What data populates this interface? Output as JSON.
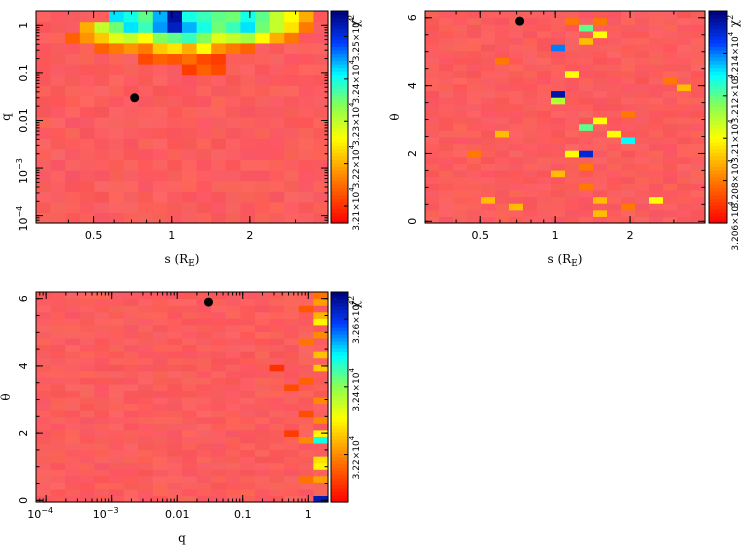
{
  "chart_data": [
    {
      "type": "heatmap",
      "xlabel": "s (R",
      "xlabel_sub": "E",
      "xlabel_end": ")",
      "ylabel": "q",
      "x_scale": "log",
      "y_scale": "log",
      "xlim": [
        0.3,
        4.0
      ],
      "ylim": [
        7e-05,
        2.0
      ],
      "x_ticks": [
        {
          "v": 0.5,
          "t": "0.5"
        },
        {
          "v": 1,
          "t": "1"
        },
        {
          "v": 2,
          "t": "2"
        }
      ],
      "y_ticks": [
        {
          "v": 0.0001,
          "t": "10",
          "sup": "−4"
        },
        {
          "v": 0.001,
          "t": "10",
          "sup": "−3"
        },
        {
          "v": 0.01,
          "t": "0.01"
        },
        {
          "v": 0.1,
          "t": "0.1"
        },
        {
          "v": 1,
          "t": "1"
        }
      ],
      "colorbar": {
        "label": "χ",
        "label_sup": "2",
        "range": [
          32060,
          32560
        ],
        "ticks": [
          {
            "v": 32100,
            "t": "3.21×10",
            "sup": "4"
          },
          {
            "v": 32200,
            "t": "3.22×10",
            "sup": "4"
          },
          {
            "v": 32300,
            "t": "3.23×10",
            "sup": "4"
          },
          {
            "v": 32400,
            "t": "3.24×10",
            "sup": "4"
          },
          {
            "v": 32500,
            "t": "3.25×10",
            "sup": "4"
          }
        ]
      },
      "marker": {
        "x": 0.72,
        "y": 0.03
      },
      "grid": {
        "nx": 20,
        "ny": 20
      },
      "hot_cells": [
        {
          "i": 5,
          "j": 19,
          "v": 32420
        },
        {
          "i": 6,
          "j": 19,
          "v": 32400
        },
        {
          "i": 7,
          "j": 19,
          "v": 32360
        },
        {
          "i": 8,
          "j": 19,
          "v": 32440
        },
        {
          "i": 9,
          "j": 19,
          "v": 32540
        },
        {
          "i": 10,
          "j": 19,
          "v": 32400
        },
        {
          "i": 11,
          "j": 19,
          "v": 32380
        },
        {
          "i": 12,
          "j": 19,
          "v": 32360
        },
        {
          "i": 13,
          "j": 19,
          "v": 32350
        },
        {
          "i": 14,
          "j": 19,
          "v": 32400
        },
        {
          "i": 15,
          "j": 19,
          "v": 32360
        },
        {
          "i": 16,
          "j": 19,
          "v": 32300
        },
        {
          "i": 17,
          "j": 19,
          "v": 32260
        },
        {
          "i": 18,
          "j": 19,
          "v": 32200
        },
        {
          "i": 3,
          "j": 18,
          "v": 32200
        },
        {
          "i": 4,
          "j": 18,
          "v": 32300
        },
        {
          "i": 5,
          "j": 18,
          "v": 32350
        },
        {
          "i": 6,
          "j": 18,
          "v": 32420
        },
        {
          "i": 7,
          "j": 18,
          "v": 32380
        },
        {
          "i": 8,
          "j": 18,
          "v": 32450
        },
        {
          "i": 9,
          "j": 18,
          "v": 32520
        },
        {
          "i": 10,
          "j": 18,
          "v": 32440
        },
        {
          "i": 11,
          "j": 18,
          "v": 32400
        },
        {
          "i": 12,
          "j": 18,
          "v": 32350
        },
        {
          "i": 13,
          "j": 18,
          "v": 32380
        },
        {
          "i": 14,
          "j": 18,
          "v": 32420
        },
        {
          "i": 15,
          "j": 18,
          "v": 32350
        },
        {
          "i": 16,
          "j": 18,
          "v": 32300
        },
        {
          "i": 17,
          "j": 18,
          "v": 32240
        },
        {
          "i": 18,
          "j": 18,
          "v": 32160
        },
        {
          "i": 2,
          "j": 17,
          "v": 32140
        },
        {
          "i": 3,
          "j": 17,
          "v": 32180
        },
        {
          "i": 4,
          "j": 17,
          "v": 32220
        },
        {
          "i": 5,
          "j": 17,
          "v": 32280
        },
        {
          "i": 6,
          "j": 17,
          "v": 32300
        },
        {
          "i": 7,
          "j": 17,
          "v": 32260
        },
        {
          "i": 8,
          "j": 17,
          "v": 32340
        },
        {
          "i": 9,
          "j": 17,
          "v": 32360
        },
        {
          "i": 10,
          "j": 17,
          "v": 32380
        },
        {
          "i": 11,
          "j": 17,
          "v": 32340
        },
        {
          "i": 12,
          "j": 17,
          "v": 32280
        },
        {
          "i": 13,
          "j": 17,
          "v": 32300
        },
        {
          "i": 14,
          "j": 17,
          "v": 32320
        },
        {
          "i": 15,
          "j": 17,
          "v": 32260
        },
        {
          "i": 16,
          "j": 17,
          "v": 32200
        },
        {
          "i": 17,
          "j": 17,
          "v": 32160
        },
        {
          "i": 4,
          "j": 16,
          "v": 32140
        },
        {
          "i": 5,
          "j": 16,
          "v": 32160
        },
        {
          "i": 6,
          "j": 16,
          "v": 32180
        },
        {
          "i": 7,
          "j": 16,
          "v": 32160
        },
        {
          "i": 8,
          "j": 16,
          "v": 32220
        },
        {
          "i": 9,
          "j": 16,
          "v": 32240
        },
        {
          "i": 10,
          "j": 16,
          "v": 32200
        },
        {
          "i": 11,
          "j": 16,
          "v": 32260
        },
        {
          "i": 12,
          "j": 16,
          "v": 32180
        },
        {
          "i": 13,
          "j": 16,
          "v": 32160
        },
        {
          "i": 14,
          "j": 16,
          "v": 32140
        },
        {
          "i": 7,
          "j": 15,
          "v": 32120
        },
        {
          "i": 8,
          "j": 15,
          "v": 32140
        },
        {
          "i": 9,
          "j": 15,
          "v": 32130
        },
        {
          "i": 10,
          "j": 15,
          "v": 32150
        },
        {
          "i": 11,
          "j": 15,
          "v": 32120
        },
        {
          "i": 12,
          "j": 15,
          "v": 32110
        },
        {
          "i": 10,
          "j": 14,
          "v": 32110
        },
        {
          "i": 11,
          "j": 14,
          "v": 32140
        },
        {
          "i": 12,
          "j": 14,
          "v": 32120
        }
      ]
    },
    {
      "type": "heatmap",
      "xlabel": "s (R",
      "xlabel_sub": "E",
      "xlabel_end": ")",
      "ylabel": "θ",
      "x_scale": "log",
      "y_scale": "linear",
      "xlim": [
        0.3,
        4.0
      ],
      "ylim": [
        -0.05,
        6.2
      ],
      "x_ticks": [
        {
          "v": 0.5,
          "t": "0.5"
        },
        {
          "v": 1,
          "t": "1"
        },
        {
          "v": 2,
          "t": "2"
        }
      ],
      "y_ticks": [
        {
          "v": 0,
          "t": "0"
        },
        {
          "v": 2,
          "t": "2"
        },
        {
          "v": 4,
          "t": "4"
        },
        {
          "v": 6,
          "t": "6"
        }
      ],
      "colorbar": {
        "label": "χ",
        "label_sup": "2",
        "range": [
          32060,
          32160
        ],
        "ticks": [
          {
            "v": 32060,
            "t": "3.206×10",
            "sup": "4"
          },
          {
            "v": 32080,
            "t": "3.208×10",
            "sup": "4"
          },
          {
            "v": 32100,
            "t": "3.21×10",
            "sup": "4"
          },
          {
            "v": 32120,
            "t": "3.212×10",
            "sup": "4"
          },
          {
            "v": 32140,
            "t": "3.214×10",
            "sup": "4"
          }
        ]
      },
      "marker": {
        "x": 0.72,
        "y": 5.9
      },
      "grid": {
        "nx": 20,
        "ny": 32
      },
      "hot_cells": [
        {
          "i": 9,
          "j": 26,
          "v": 32140
        },
        {
          "i": 9,
          "j": 19,
          "v": 32155
        },
        {
          "i": 9,
          "j": 18,
          "v": 32110
        },
        {
          "i": 11,
          "j": 29,
          "v": 32120
        },
        {
          "i": 11,
          "j": 27,
          "v": 32090
        },
        {
          "i": 12,
          "j": 28,
          "v": 32100
        },
        {
          "i": 11,
          "j": 14,
          "v": 32120
        },
        {
          "i": 11,
          "j": 10,
          "v": 32150
        },
        {
          "i": 10,
          "j": 10,
          "v": 32100
        },
        {
          "i": 9,
          "j": 7,
          "v": 32090
        },
        {
          "i": 14,
          "j": 12,
          "v": 32130
        },
        {
          "i": 13,
          "j": 13,
          "v": 32100
        },
        {
          "i": 12,
          "j": 15,
          "v": 32100
        },
        {
          "i": 10,
          "j": 22,
          "v": 32100
        },
        {
          "i": 5,
          "j": 13,
          "v": 32090
        },
        {
          "i": 18,
          "j": 20,
          "v": 32090
        },
        {
          "i": 4,
          "j": 3,
          "v": 32090
        },
        {
          "i": 6,
          "j": 2,
          "v": 32090
        },
        {
          "i": 12,
          "j": 3,
          "v": 32090
        },
        {
          "i": 12,
          "j": 1,
          "v": 32090
        },
        {
          "i": 16,
          "j": 3,
          "v": 32100
        },
        {
          "i": 14,
          "j": 2,
          "v": 32080
        },
        {
          "i": 11,
          "j": 8,
          "v": 32080
        },
        {
          "i": 11,
          "j": 5,
          "v": 32080
        },
        {
          "i": 10,
          "j": 30,
          "v": 32080
        },
        {
          "i": 12,
          "j": 30,
          "v": 32080
        },
        {
          "i": 14,
          "j": 16,
          "v": 32080
        },
        {
          "i": 5,
          "j": 24,
          "v": 32080
        },
        {
          "i": 17,
          "j": 21,
          "v": 32080
        },
        {
          "i": 3,
          "j": 10,
          "v": 32080
        }
      ]
    },
    {
      "type": "heatmap",
      "xlabel": "q",
      "ylabel": "θ",
      "x_scale": "log",
      "y_scale": "linear",
      "xlim": [
        7e-05,
        2.0
      ],
      "ylim": [
        -0.05,
        6.2
      ],
      "x_ticks": [
        {
          "v": 0.0001,
          "t": "10",
          "sup": "−4"
        },
        {
          "v": 0.001,
          "t": "10",
          "sup": "−3"
        },
        {
          "v": 0.01,
          "t": "0.01"
        },
        {
          "v": 0.1,
          "t": "0.1"
        },
        {
          "v": 1,
          "t": "1"
        }
      ],
      "y_ticks": [
        {
          "v": 0,
          "t": "0"
        },
        {
          "v": 2,
          "t": "2"
        },
        {
          "v": 4,
          "t": "4"
        },
        {
          "v": 6,
          "t": "6"
        }
      ],
      "colorbar": {
        "label": "χ",
        "label_sup": "2",
        "range": [
          32060,
          32680
        ],
        "ticks": [
          {
            "v": 32200,
            "t": "3.22×10",
            "sup": "4"
          },
          {
            "v": 32400,
            "t": "3.24×10",
            "sup": "4"
          },
          {
            "v": 32600,
            "t": "3.26×10",
            "sup": "4"
          }
        ]
      },
      "marker": {
        "x": 0.03,
        "y": 5.9
      },
      "grid": {
        "nx": 20,
        "ny": 32
      },
      "hot_cells": [
        {
          "i": 19,
          "j": 0,
          "v": 32640
        },
        {
          "i": 19,
          "j": 9,
          "v": 32480
        },
        {
          "i": 19,
          "j": 10,
          "v": 32300
        },
        {
          "i": 19,
          "j": 5,
          "v": 32300
        },
        {
          "i": 19,
          "j": 27,
          "v": 32300
        },
        {
          "i": 19,
          "j": 28,
          "v": 32240
        },
        {
          "i": 19,
          "j": 30,
          "v": 32220
        },
        {
          "i": 19,
          "j": 31,
          "v": 32180
        },
        {
          "i": 19,
          "j": 20,
          "v": 32260
        },
        {
          "i": 19,
          "j": 15,
          "v": 32200
        },
        {
          "i": 19,
          "j": 22,
          "v": 32250
        },
        {
          "i": 19,
          "j": 6,
          "v": 32280
        },
        {
          "i": 18,
          "j": 9,
          "v": 32200
        },
        {
          "i": 18,
          "j": 3,
          "v": 32180
        },
        {
          "i": 18,
          "j": 24,
          "v": 32180
        },
        {
          "i": 18,
          "j": 13,
          "v": 32140
        },
        {
          "i": 18,
          "j": 29,
          "v": 32150
        },
        {
          "i": 17,
          "j": 17,
          "v": 32140
        },
        {
          "i": 17,
          "j": 10,
          "v": 32120
        },
        {
          "i": 16,
          "j": 20,
          "v": 32110
        },
        {
          "i": 18,
          "j": 18,
          "v": 32160
        },
        {
          "i": 19,
          "j": 3,
          "v": 32220
        },
        {
          "i": 19,
          "j": 12,
          "v": 32200
        },
        {
          "i": 19,
          "j": 25,
          "v": 32200
        }
      ]
    }
  ]
}
